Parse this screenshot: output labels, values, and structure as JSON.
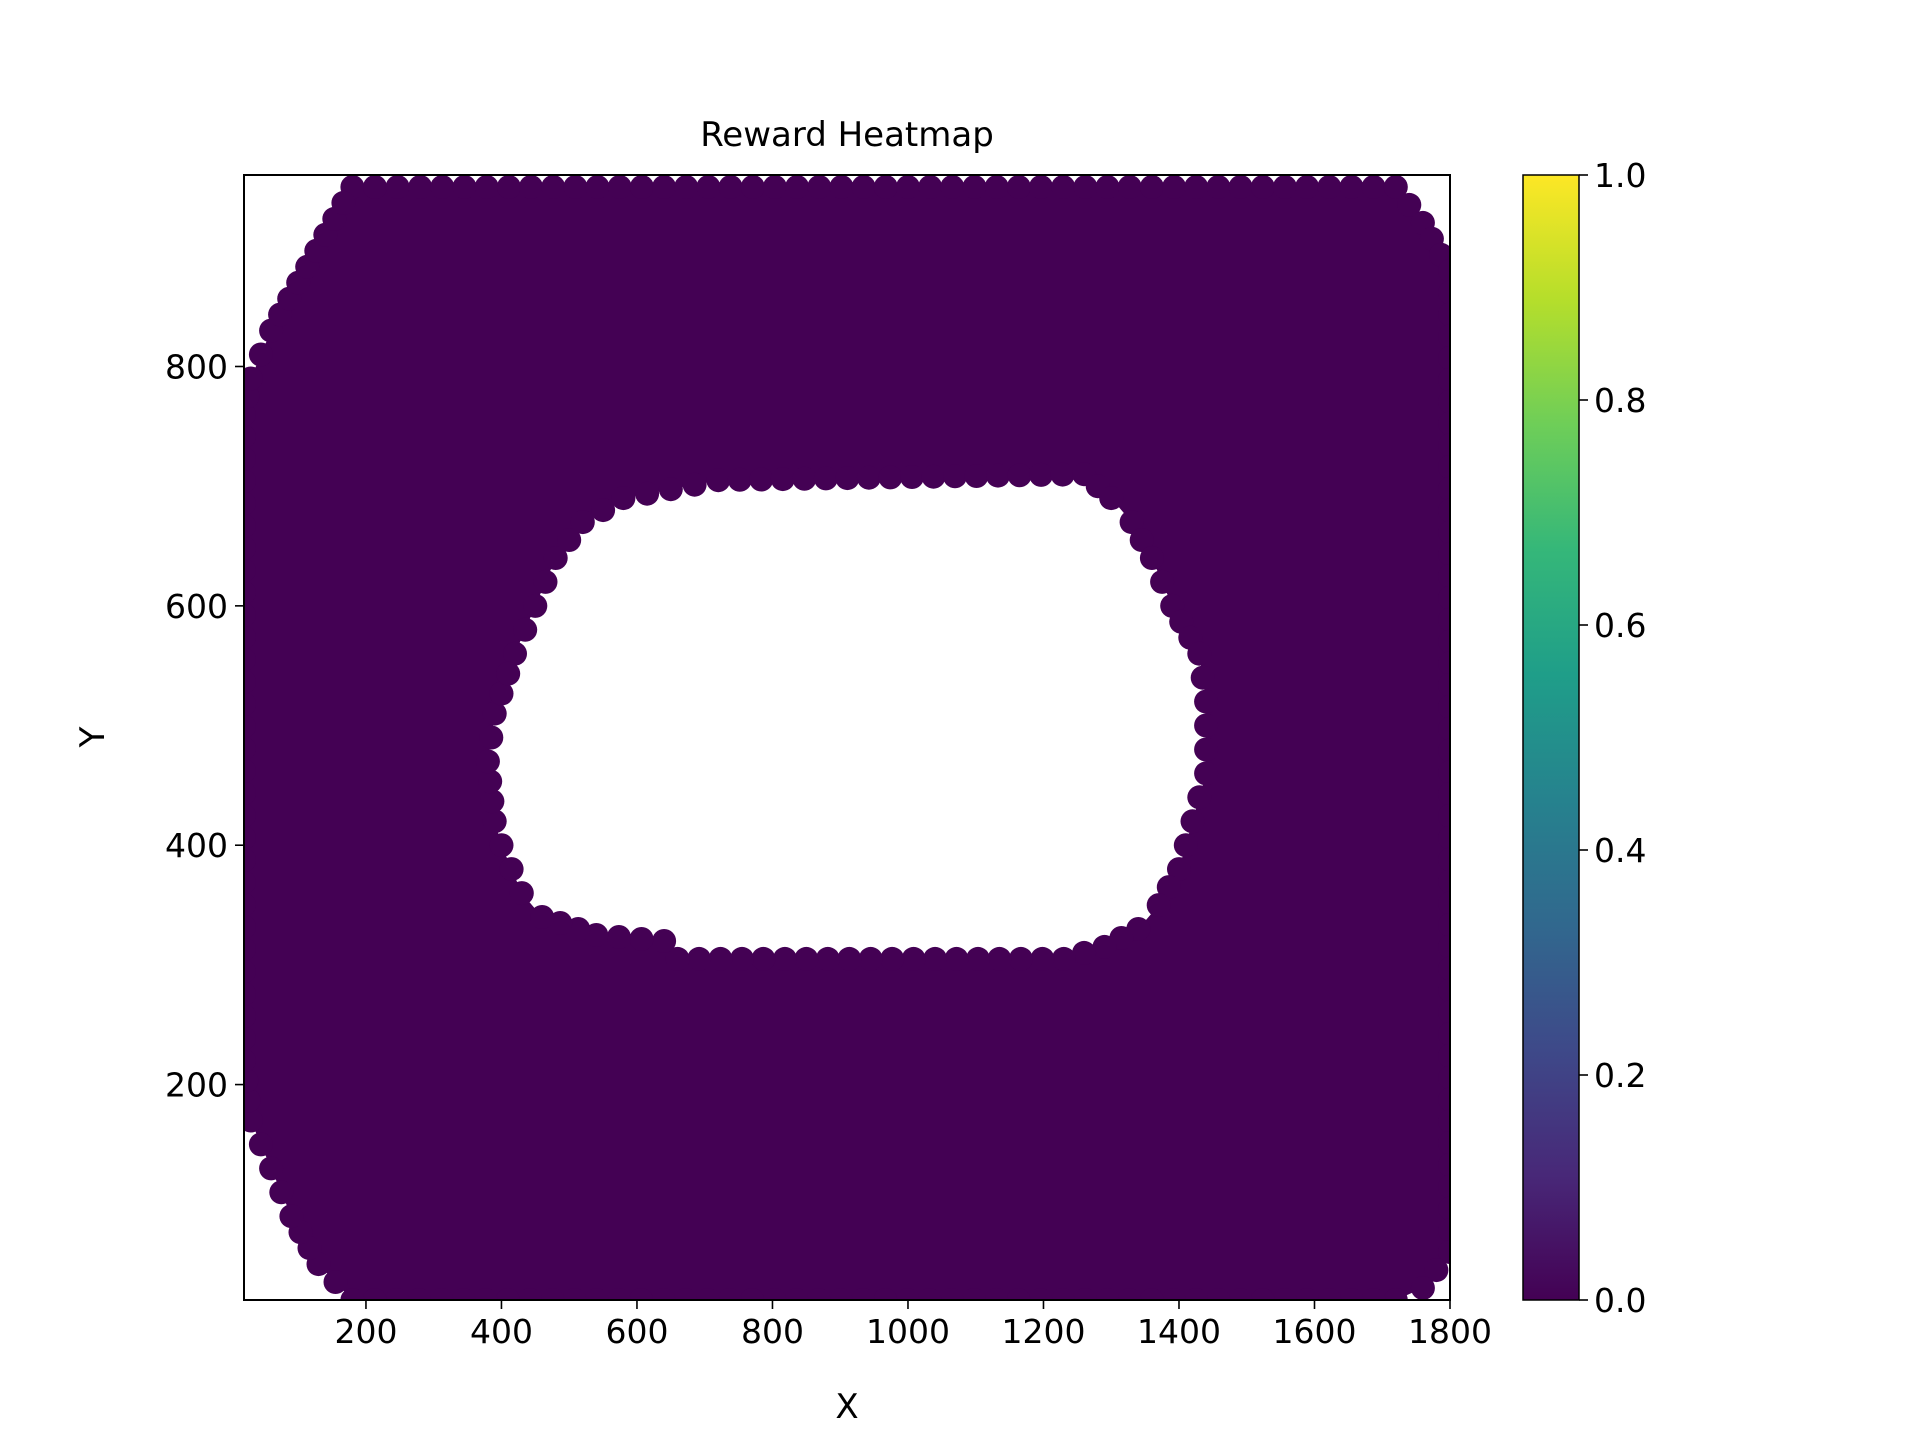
{
  "chart_data": {
    "type": "scatter",
    "title": "Reward Heatmap",
    "xlabel": "X",
    "ylabel": "Y",
    "xlim": [
      20,
      1800
    ],
    "ylim": [
      20,
      960
    ],
    "xticks": [
      200,
      400,
      600,
      800,
      1000,
      1200,
      1400,
      1600,
      1800
    ],
    "yticks": [
      200,
      400,
      600,
      800
    ],
    "grid": false,
    "colormap": "viridis",
    "colorbar": {
      "range": [
        0.0,
        1.0
      ],
      "ticks": [
        "0.0",
        "0.2",
        "0.4",
        "0.6",
        "0.8",
        "1.0"
      ]
    },
    "point_value": 0.0,
    "point_color": "#440154",
    "region": {
      "outer": [
        [
          180,
          950
        ],
        [
          280,
          950
        ],
        [
          1720,
          950
        ],
        [
          1760,
          920
        ],
        [
          1800,
          880
        ],
        [
          1800,
          60
        ],
        [
          1760,
          30
        ],
        [
          1720,
          20
        ],
        [
          180,
          20
        ],
        [
          130,
          50
        ],
        [
          90,
          90
        ],
        [
          60,
          130
        ],
        [
          30,
          170
        ],
        [
          20,
          220
        ],
        [
          20,
          760
        ],
        [
          30,
          790
        ],
        [
          60,
          830
        ],
        [
          100,
          870
        ],
        [
          140,
          910
        ]
      ],
      "hole": [
        [
          420,
          560
        ],
        [
          450,
          600
        ],
        [
          480,
          640
        ],
        [
          520,
          670
        ],
        [
          580,
          690
        ],
        [
          720,
          705
        ],
        [
          1260,
          710
        ],
        [
          1300,
          690
        ],
        [
          1330,
          670
        ],
        [
          1360,
          640
        ],
        [
          1390,
          600
        ],
        [
          1430,
          560
        ],
        [
          1440,
          520
        ],
        [
          1440,
          460
        ],
        [
          1420,
          420
        ],
        [
          1400,
          380
        ],
        [
          1370,
          350
        ],
        [
          1340,
          330
        ],
        [
          1290,
          315
        ],
        [
          1230,
          305
        ],
        [
          660,
          305
        ],
        [
          640,
          320
        ],
        [
          540,
          325
        ],
        [
          460,
          340
        ],
        [
          430,
          360
        ],
        [
          400,
          400
        ],
        [
          390,
          420
        ],
        [
          380,
          470
        ],
        [
          390,
          510
        ]
      ]
    }
  },
  "colors": {
    "viridis_stops": [
      "#440154",
      "#482878",
      "#3e4989",
      "#31688e",
      "#26828e",
      "#1f9e89",
      "#35b779",
      "#6ece58",
      "#b5de2b",
      "#fde725"
    ]
  }
}
